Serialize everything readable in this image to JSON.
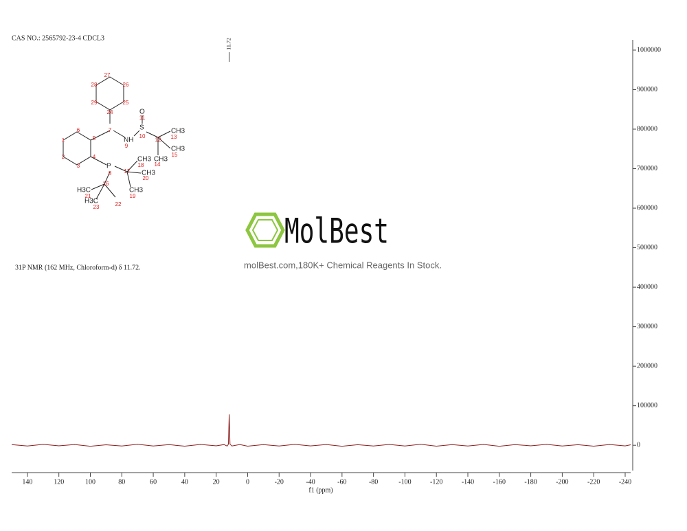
{
  "chart_data": {
    "type": "line",
    "title": "CAS NO.: 2565792-23-4 CDCL3",
    "annotation": "31P NMR (162 MHz, Chloroform-d) δ 11.72.",
    "watermark": "MolBest",
    "watermark_subtitle": "molBest.com,180K+ Chemical Reagents In Stock.",
    "xlabel": "f1 (ppm)",
    "x": [
      150,
      140,
      130,
      120,
      110,
      100,
      90,
      80,
      70,
      60,
      50,
      40,
      30,
      20,
      15,
      13,
      12.2,
      11.72,
      11.2,
      10,
      5,
      0,
      -10,
      -20,
      -30,
      -40,
      -50,
      -60,
      -70,
      -80,
      -90,
      -100,
      -110,
      -120,
      -130,
      -140,
      -150,
      -160,
      -170,
      -180,
      -190,
      -200,
      -210,
      -220,
      -230,
      -240,
      -243.5
    ],
    "series": [
      {
        "name": "31P",
        "color": "#8b1a1a",
        "values": [
          1500,
          -2000,
          2200,
          -1500,
          1800,
          -2400,
          1200,
          -1700,
          2500,
          -1900,
          1600,
          -2200,
          2000,
          -1400,
          1700,
          -2100,
          3000,
          78000,
          2500,
          -1800,
          1900,
          -2300,
          1500,
          -2000,
          2300,
          -1600,
          1800,
          -2500,
          1400,
          -1900,
          2100,
          -1700,
          2400,
          -2200,
          1600,
          -1800,
          2000,
          -2400,
          1700,
          -1500,
          2200,
          -2000,
          1300,
          -2300,
          1900,
          -1600,
          1200
        ]
      }
    ],
    "peak_labels": [
      11.72
    ],
    "xlim": [
      150,
      -243.5
    ],
    "xticks": [
      140,
      120,
      100,
      80,
      60,
      40,
      20,
      0,
      -20,
      -40,
      -60,
      -80,
      -100,
      -120,
      -140,
      -160,
      -180,
      -200,
      -220,
      -240
    ],
    "ylim": [
      -64000,
      1026000
    ],
    "yticks": [
      0,
      100000,
      200000,
      300000,
      400000,
      500000,
      600000,
      700000,
      800000,
      900000,
      1000000
    ]
  },
  "structure": {
    "labels": [
      "O",
      "S",
      "NH",
      "P",
      "CH3",
      "CH3",
      "CH3",
      "CH3",
      "CH3",
      "CH3",
      "H3C",
      "H3C"
    ],
    "numbers": [
      "27",
      "28",
      "26",
      "29",
      "25",
      "24",
      "7",
      "6",
      "5",
      "1",
      "2",
      "4",
      "3",
      "9",
      "10",
      "11",
      "12",
      "13",
      "14",
      "15",
      "8",
      "17",
      "18",
      "20",
      "16",
      "19",
      "21",
      "22",
      "23"
    ]
  }
}
